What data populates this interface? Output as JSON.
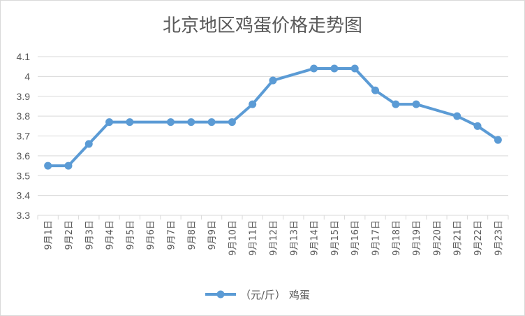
{
  "chart_data": {
    "type": "line",
    "title": "北京地区鸡蛋价格走势图",
    "xlabel": "",
    "ylabel": "",
    "ylim": [
      3.3,
      4.1
    ],
    "yticks": [
      3.3,
      3.4,
      3.5,
      3.6,
      3.7,
      3.8,
      3.9,
      4,
      4.1
    ],
    "grid": true,
    "legend_position": "bottom",
    "categories": [
      "9月1日",
      "9月2日",
      "9月3日",
      "9月4日",
      "9月5日",
      "9月6日",
      "9月7日",
      "9月8日",
      "9月9日",
      "9月10日",
      "9月11日",
      "9月12日",
      "9月13日",
      "9月14日",
      "9月15日",
      "9月16日",
      "9月17日",
      "9月18日",
      "9月19日",
      "9月20日",
      "9月21日",
      "9月22日",
      "9月23日"
    ],
    "series": [
      {
        "name": "（元/斤）  鸡蛋",
        "color": "#5b9bd5",
        "values": [
          3.55,
          3.55,
          3.66,
          3.77,
          3.77,
          null,
          3.77,
          3.77,
          3.77,
          3.77,
          3.86,
          3.98,
          null,
          4.04,
          4.04,
          4.04,
          3.93,
          3.86,
          3.86,
          null,
          3.8,
          3.75,
          3.68
        ]
      }
    ]
  }
}
